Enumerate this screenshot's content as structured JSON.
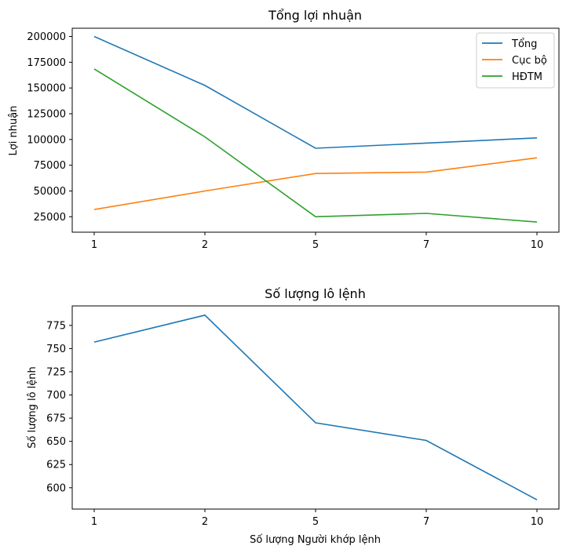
{
  "chart_data": [
    {
      "type": "line",
      "title": "Tổng lợi nhuận",
      "xlabel": "",
      "ylabel": "Lợi nhuận",
      "x": [
        "1",
        "2",
        "5",
        "7",
        "10"
      ],
      "yticks": [
        "25000",
        "50000",
        "75000",
        "100000",
        "125000",
        "150000",
        "175000",
        "200000"
      ],
      "ylim": [
        10000,
        208000
      ],
      "grid": false,
      "legend": "top-right",
      "series": [
        {
          "name": "Tổng",
          "color": "#1f77b4",
          "values": [
            200000,
            152500,
            91500,
            96500,
            101500
          ]
        },
        {
          "name": "Cục bộ",
          "color": "#ff7f0e",
          "values": [
            32000,
            50000,
            67000,
            68300,
            82200
          ]
        },
        {
          "name": "HĐTM",
          "color": "#2ca02c",
          "values": [
            168500,
            102500,
            25000,
            28300,
            19800
          ]
        }
      ]
    },
    {
      "type": "line",
      "title": "Số lượng lô lệnh",
      "xlabel": "Số lượng Người khớp lệnh",
      "ylabel": "Số lượng lô lệnh",
      "x": [
        "1",
        "2",
        "5",
        "7",
        "10"
      ],
      "yticks": [
        "600",
        "625",
        "650",
        "675",
        "700",
        "725",
        "750",
        "775"
      ],
      "ylim": [
        577,
        796
      ],
      "grid": false,
      "legend": "none",
      "series": [
        {
          "color": "#1f77b4",
          "values": [
            757,
            786,
            670,
            651,
            587
          ]
        }
      ]
    }
  ]
}
